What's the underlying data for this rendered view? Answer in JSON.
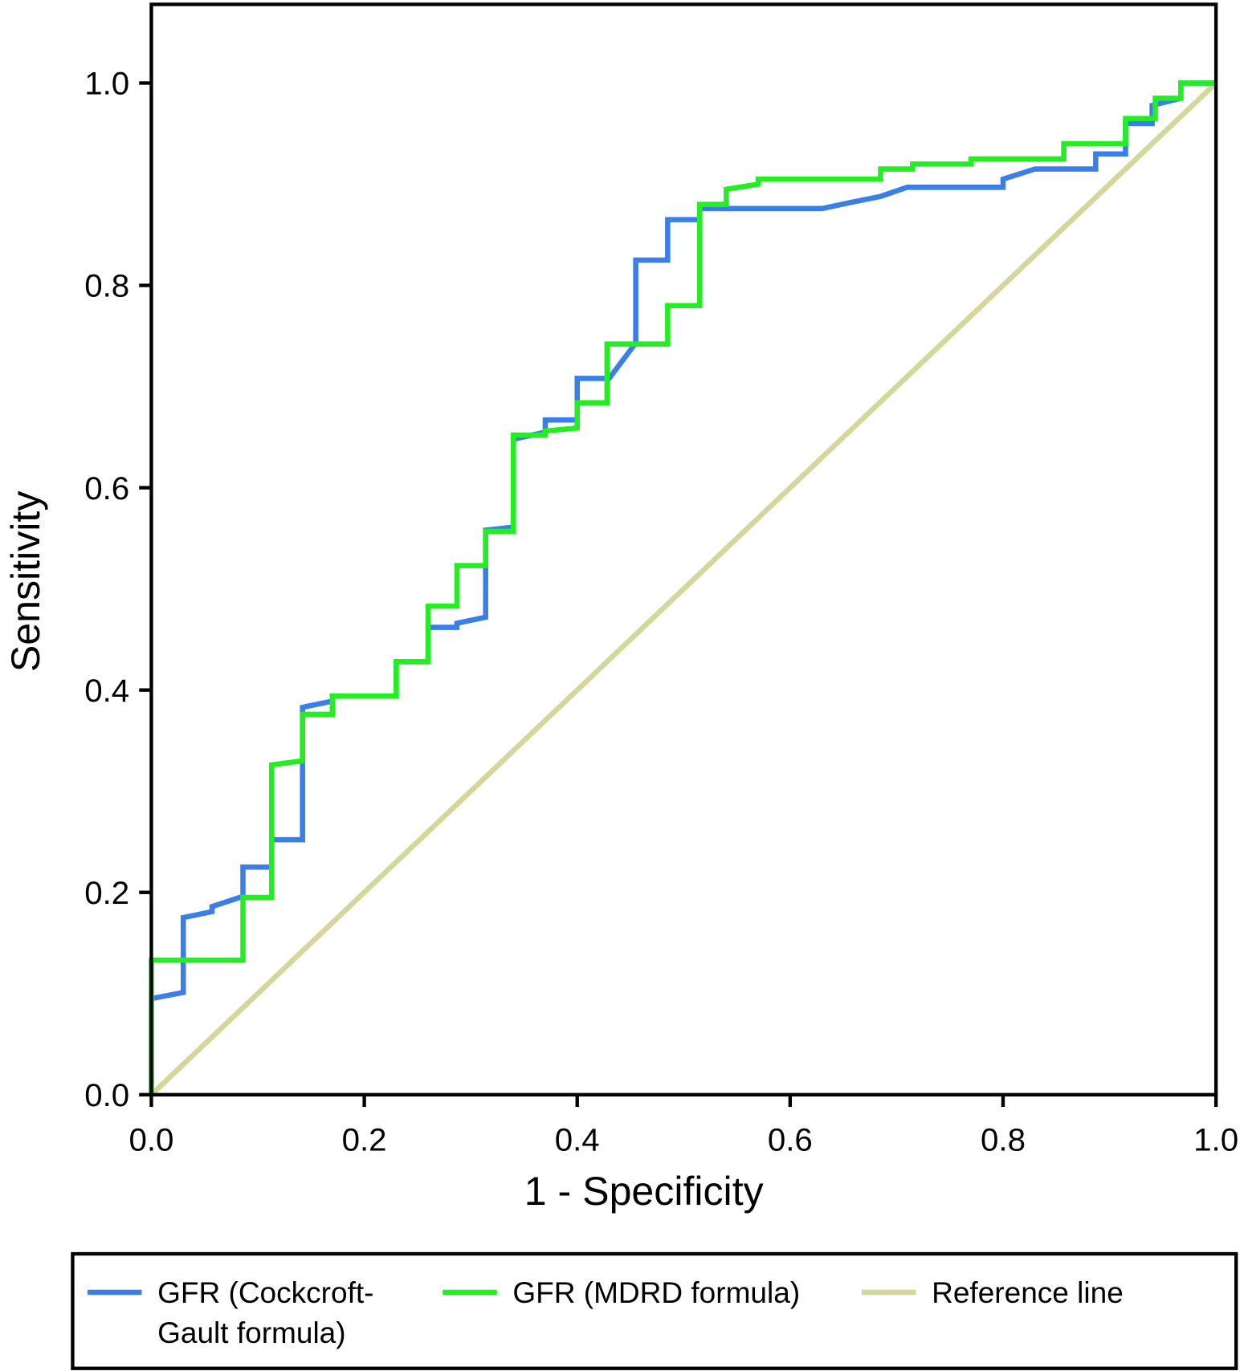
{
  "chart_data": {
    "type": "line",
    "title": "",
    "xlabel": "1 - Specificity",
    "ylabel": "Sensitivity",
    "xlim": [
      0,
      1
    ],
    "ylim": [
      0,
      1
    ],
    "xticks": [
      "0.0",
      "0.2",
      "0.4",
      "0.6",
      "0.8",
      "1.0"
    ],
    "yticks": [
      "0.0",
      "0.2",
      "0.4",
      "0.6",
      "0.8",
      "1.0"
    ],
    "grid": false,
    "legend_position": "bottom",
    "series": [
      {
        "name": "GFR (Cockcroft-Gault formula)",
        "legend_lines": [
          "GFR (Cockcroft-",
          "Gault formula)"
        ],
        "color": "#3a7ee8",
        "points": [
          [
            0,
            0
          ],
          [
            0,
            0.095
          ],
          [
            0.03,
            0.101
          ],
          [
            0.03,
            0.175
          ],
          [
            0.057,
            0.181
          ],
          [
            0.057,
            0.186
          ],
          [
            0.086,
            0.196
          ],
          [
            0.086,
            0.225
          ],
          [
            0.113,
            0.225
          ],
          [
            0.113,
            0.252
          ],
          [
            0.142,
            0.252
          ],
          [
            0.142,
            0.383
          ],
          [
            0.17,
            0.389
          ],
          [
            0.17,
            0.394
          ],
          [
            0.23,
            0.394
          ],
          [
            0.23,
            0.428
          ],
          [
            0.26,
            0.428
          ],
          [
            0.26,
            0.462
          ],
          [
            0.287,
            0.462
          ],
          [
            0.287,
            0.466
          ],
          [
            0.314,
            0.472
          ],
          [
            0.314,
            0.558
          ],
          [
            0.34,
            0.561
          ],
          [
            0.34,
            0.648
          ],
          [
            0.37,
            0.655
          ],
          [
            0.37,
            0.667
          ],
          [
            0.4,
            0.667
          ],
          [
            0.4,
            0.708
          ],
          [
            0.43,
            0.708
          ],
          [
            0.455,
            0.743
          ],
          [
            0.455,
            0.825
          ],
          [
            0.485,
            0.825
          ],
          [
            0.485,
            0.865
          ],
          [
            0.515,
            0.865
          ],
          [
            0.515,
            0.876
          ],
          [
            0.63,
            0.876
          ],
          [
            0.657,
            0.882
          ],
          [
            0.685,
            0.888
          ],
          [
            0.71,
            0.897
          ],
          [
            0.8,
            0.897
          ],
          [
            0.8,
            0.905
          ],
          [
            0.83,
            0.915
          ],
          [
            0.887,
            0.915
          ],
          [
            0.887,
            0.93
          ],
          [
            0.915,
            0.93
          ],
          [
            0.915,
            0.96
          ],
          [
            0.94,
            0.96
          ],
          [
            0.94,
            0.978
          ],
          [
            0.967,
            0.985
          ],
          [
            0.967,
            1.0
          ],
          [
            1.0,
            1.0
          ]
        ]
      },
      {
        "name": "GFR (MDRD formula)",
        "legend_lines": [
          "GFR (MDRD formula)"
        ],
        "color": "#22ee22",
        "points": [
          [
            0,
            0
          ],
          [
            0,
            0.133
          ],
          [
            0.086,
            0.133
          ],
          [
            0.086,
            0.195
          ],
          [
            0.113,
            0.195
          ],
          [
            0.113,
            0.326
          ],
          [
            0.142,
            0.33
          ],
          [
            0.142,
            0.376
          ],
          [
            0.17,
            0.376
          ],
          [
            0.17,
            0.394
          ],
          [
            0.23,
            0.394
          ],
          [
            0.23,
            0.428
          ],
          [
            0.26,
            0.428
          ],
          [
            0.26,
            0.483
          ],
          [
            0.287,
            0.483
          ],
          [
            0.287,
            0.523
          ],
          [
            0.314,
            0.523
          ],
          [
            0.314,
            0.557
          ],
          [
            0.34,
            0.557
          ],
          [
            0.34,
            0.652
          ],
          [
            0.37,
            0.652
          ],
          [
            0.37,
            0.656
          ],
          [
            0.4,
            0.659
          ],
          [
            0.4,
            0.684
          ],
          [
            0.428,
            0.684
          ],
          [
            0.428,
            0.742
          ],
          [
            0.485,
            0.742
          ],
          [
            0.485,
            0.78
          ],
          [
            0.515,
            0.78
          ],
          [
            0.515,
            0.88
          ],
          [
            0.54,
            0.88
          ],
          [
            0.54,
            0.895
          ],
          [
            0.57,
            0.9
          ],
          [
            0.57,
            0.905
          ],
          [
            0.685,
            0.905
          ],
          [
            0.685,
            0.915
          ],
          [
            0.715,
            0.915
          ],
          [
            0.715,
            0.92
          ],
          [
            0.77,
            0.92
          ],
          [
            0.77,
            0.925
          ],
          [
            0.857,
            0.925
          ],
          [
            0.857,
            0.94
          ],
          [
            0.915,
            0.94
          ],
          [
            0.915,
            0.965
          ],
          [
            0.943,
            0.965
          ],
          [
            0.943,
            0.985
          ],
          [
            0.967,
            0.985
          ],
          [
            0.967,
            1.0
          ],
          [
            1.0,
            1.0
          ]
        ]
      },
      {
        "name": "Reference line",
        "legend_lines": [
          "Reference line"
        ],
        "color": "#d4d69a",
        "points": [
          [
            0,
            0
          ],
          [
            1,
            1
          ]
        ]
      }
    ]
  }
}
